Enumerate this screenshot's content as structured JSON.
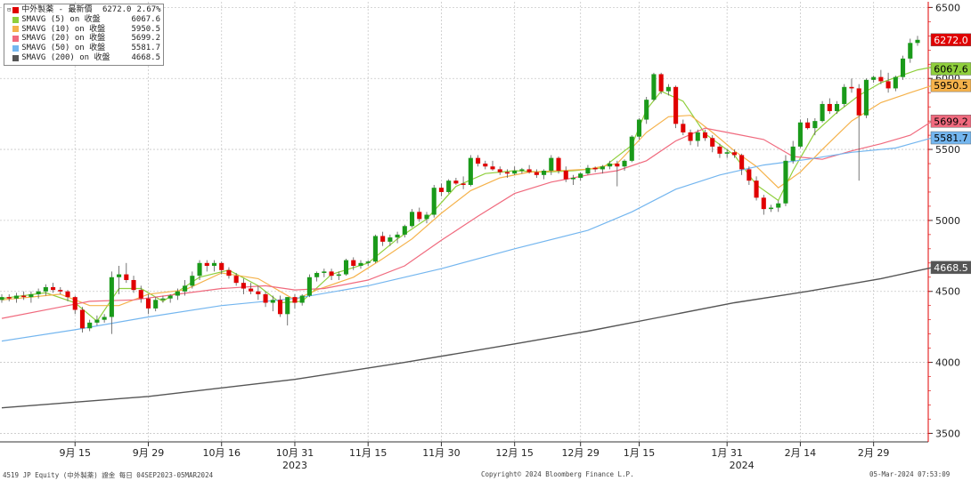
{
  "legend": {
    "items": [
      {
        "name": "中外製薬 - 最新價",
        "value": "6272.0",
        "pct": "2.67%",
        "color": "#e00000"
      },
      {
        "name": "SMAVG (5)  on 收盤",
        "value": "6067.6",
        "color": "#8fcf3c"
      },
      {
        "name": "SMAVG (10)  on 收盤",
        "value": "5950.5",
        "color": "#f5b24b"
      },
      {
        "name": "SMAVG (20)  on 收盤",
        "value": "5699.2",
        "color": "#f06a7e"
      },
      {
        "name": "SMAVG (50)  on 收盤",
        "value": "5581.7",
        "color": "#74b6ef"
      },
      {
        "name": "SMAVG (200)  on 收盤",
        "value": "4668.5",
        "color": "#555555"
      }
    ]
  },
  "footer": {
    "left": "4519 JP Equity (中外製薬) 證金  每日 04SEP2023-05MAR2024",
    "center": "Copyright© 2024 Bloomberg Finance L.P.",
    "right": "05-Mar-2024 07:53:09"
  },
  "chart_data": {
    "type": "candlestick",
    "title": "",
    "xlabel": "",
    "ylabel": "",
    "ylim": [
      3440,
      6540
    ],
    "y_ticks": [
      3500,
      4000,
      4500,
      5000,
      5500,
      6000,
      6500
    ],
    "x_tick_labels": [
      "9月 15",
      "9月 29",
      "10月 16",
      "10月 31",
      "11月 15",
      "11月 30",
      "12月 15",
      "12月 29",
      "1月 15",
      "1月 31",
      "2月 14",
      "2月 29"
    ],
    "x_tick_index": [
      10,
      20,
      30,
      40,
      50,
      60,
      70,
      79,
      87,
      99,
      109,
      119
    ],
    "year_labels": [
      {
        "label": "2023",
        "index": 40
      },
      {
        "label": "2024",
        "index": 101
      }
    ],
    "grid": true,
    "up_color": "#1a9a1a",
    "down_color": "#e00000",
    "candles": [
      [
        4440,
        4480,
        4420,
        4460
      ],
      [
        4460,
        4480,
        4430,
        4450
      ],
      [
        4450,
        4490,
        4420,
        4470
      ],
      [
        4470,
        4500,
        4440,
        4460
      ],
      [
        4460,
        4500,
        4420,
        4480
      ],
      [
        4480,
        4520,
        4450,
        4500
      ],
      [
        4500,
        4550,
        4470,
        4530
      ],
      [
        4530,
        4560,
        4490,
        4510
      ],
      [
        4510,
        4530,
        4480,
        4500
      ],
      [
        4500,
        4510,
        4430,
        4460
      ],
      [
        4460,
        4470,
        4340,
        4370
      ],
      [
        4370,
        4390,
        4210,
        4240
      ],
      [
        4240,
        4300,
        4220,
        4280
      ],
      [
        4280,
        4330,
        4260,
        4300
      ],
      [
        4300,
        4340,
        4280,
        4320
      ],
      [
        4320,
        4640,
        4200,
        4600
      ],
      [
        4600,
        4680,
        4480,
        4620
      ],
      [
        4620,
        4700,
        4560,
        4580
      ],
      [
        4580,
        4610,
        4490,
        4510
      ],
      [
        4510,
        4540,
        4420,
        4450
      ],
      [
        4450,
        4480,
        4340,
        4380
      ],
      [
        4380,
        4460,
        4360,
        4440
      ],
      [
        4440,
        4470,
        4420,
        4450
      ],
      [
        4450,
        4480,
        4420,
        4470
      ],
      [
        4470,
        4520,
        4440,
        4500
      ],
      [
        4500,
        4580,
        4470,
        4540
      ],
      [
        4540,
        4640,
        4520,
        4610
      ],
      [
        4610,
        4720,
        4580,
        4700
      ],
      [
        4700,
        4720,
        4640,
        4680
      ],
      [
        4680,
        4720,
        4640,
        4700
      ],
      [
        4700,
        4710,
        4620,
        4650
      ],
      [
        4650,
        4670,
        4590,
        4610
      ],
      [
        4610,
        4630,
        4540,
        4560
      ],
      [
        4560,
        4590,
        4480,
        4520
      ],
      [
        4520,
        4560,
        4480,
        4500
      ],
      [
        4500,
        4540,
        4440,
        4480
      ],
      [
        4480,
        4500,
        4390,
        4420
      ],
      [
        4420,
        4470,
        4360,
        4440
      ],
      [
        4440,
        4470,
        4320,
        4340
      ],
      [
        4340,
        4460,
        4260,
        4460
      ],
      [
        4460,
        4480,
        4380,
        4420
      ],
      [
        4420,
        4480,
        4400,
        4470
      ],
      [
        4470,
        4620,
        4460,
        4600
      ],
      [
        4600,
        4640,
        4570,
        4630
      ],
      [
        4630,
        4660,
        4600,
        4640
      ],
      [
        4640,
        4660,
        4580,
        4610
      ],
      [
        4610,
        4640,
        4580,
        4620
      ],
      [
        4620,
        4730,
        4610,
        4720
      ],
      [
        4720,
        4740,
        4650,
        4680
      ],
      [
        4680,
        4720,
        4660,
        4700
      ],
      [
        4700,
        4720,
        4680,
        4710
      ],
      [
        4710,
        4900,
        4700,
        4890
      ],
      [
        4890,
        4920,
        4820,
        4850
      ],
      [
        4850,
        4900,
        4820,
        4880
      ],
      [
        4880,
        4920,
        4840,
        4900
      ],
      [
        4900,
        4970,
        4880,
        4960
      ],
      [
        4960,
        5080,
        4950,
        5060
      ],
      [
        5060,
        5090,
        4990,
        5010
      ],
      [
        5010,
        5060,
        4980,
        5040
      ],
      [
        5040,
        5250,
        5020,
        5230
      ],
      [
        5230,
        5260,
        5170,
        5200
      ],
      [
        5200,
        5290,
        5190,
        5280
      ],
      [
        5280,
        5300,
        5250,
        5260
      ],
      [
        5260,
        5310,
        5220,
        5250
      ],
      [
        5250,
        5460,
        5240,
        5440
      ],
      [
        5440,
        5460,
        5380,
        5400
      ],
      [
        5400,
        5420,
        5360,
        5380
      ],
      [
        5380,
        5420,
        5350,
        5360
      ],
      [
        5360,
        5380,
        5320,
        5340
      ],
      [
        5340,
        5360,
        5300,
        5330
      ],
      [
        5330,
        5380,
        5320,
        5350
      ],
      [
        5350,
        5370,
        5330,
        5360
      ],
      [
        5360,
        5390,
        5330,
        5340
      ],
      [
        5340,
        5360,
        5300,
        5320
      ],
      [
        5320,
        5360,
        5290,
        5350
      ],
      [
        5350,
        5460,
        5320,
        5440
      ],
      [
        5440,
        5450,
        5330,
        5350
      ],
      [
        5350,
        5380,
        5270,
        5290
      ],
      [
        5290,
        5320,
        5250,
        5300
      ],
      [
        5300,
        5340,
        5280,
        5330
      ],
      [
        5330,
        5390,
        5320,
        5370
      ],
      [
        5370,
        5380,
        5340,
        5360
      ],
      [
        5360,
        5390,
        5330,
        5380
      ],
      [
        5380,
        5420,
        5360,
        5400
      ],
      [
        5400,
        5420,
        5240,
        5380
      ],
      [
        5380,
        5430,
        5350,
        5420
      ],
      [
        5420,
        5600,
        5410,
        5590
      ],
      [
        5590,
        5720,
        5570,
        5710
      ],
      [
        5710,
        5870,
        5680,
        5850
      ],
      [
        5850,
        6040,
        5840,
        6030
      ],
      [
        6030,
        6040,
        5890,
        5910
      ],
      [
        5910,
        5960,
        5880,
        5940
      ],
      [
        5940,
        5950,
        5650,
        5680
      ],
      [
        5680,
        5710,
        5600,
        5620
      ],
      [
        5620,
        5640,
        5530,
        5560
      ],
      [
        5560,
        5640,
        5520,
        5620
      ],
      [
        5620,
        5640,
        5560,
        5580
      ],
      [
        5580,
        5600,
        5480,
        5520
      ],
      [
        5520,
        5540,
        5440,
        5470
      ],
      [
        5470,
        5500,
        5440,
        5480
      ],
      [
        5480,
        5500,
        5440,
        5460
      ],
      [
        5460,
        5470,
        5320,
        5360
      ],
      [
        5360,
        5380,
        5250,
        5280
      ],
      [
        5280,
        5310,
        5140,
        5160
      ],
      [
        5160,
        5180,
        5040,
        5080
      ],
      [
        5080,
        5110,
        5060,
        5090
      ],
      [
        5090,
        5140,
        5060,
        5120
      ],
      [
        5120,
        5460,
        5100,
        5420
      ],
      [
        5420,
        5560,
        5400,
        5520
      ],
      [
        5520,
        5710,
        5510,
        5690
      ],
      [
        5690,
        5720,
        5640,
        5650
      ],
      [
        5650,
        5720,
        5600,
        5700
      ],
      [
        5700,
        5840,
        5690,
        5820
      ],
      [
        5820,
        5860,
        5750,
        5770
      ],
      [
        5770,
        5840,
        5750,
        5820
      ],
      [
        5820,
        5960,
        5800,
        5940
      ],
      [
        5940,
        6000,
        5900,
        5930
      ],
      [
        5930,
        5960,
        5280,
        5740
      ],
      [
        5740,
        6000,
        5720,
        5990
      ],
      [
        5990,
        6020,
        5970,
        6010
      ],
      [
        6010,
        6060,
        5960,
        5980
      ],
      [
        5980,
        6040,
        5900,
        5930
      ],
      [
        5930,
        6020,
        5910,
        6010
      ],
      [
        6010,
        6160,
        5990,
        6140
      ],
      [
        6140,
        6280,
        6110,
        6250
      ],
      [
        6250,
        6300,
        6230,
        6272
      ]
    ],
    "moving_averages": [
      {
        "name": "SMAVG (5)",
        "color": "#8fcf3c",
        "values": [
          [
            0,
            4450
          ],
          [
            6,
            4490
          ],
          [
            10,
            4420
          ],
          [
            13,
            4290
          ],
          [
            16,
            4520
          ],
          [
            19,
            4520
          ],
          [
            22,
            4430
          ],
          [
            27,
            4600
          ],
          [
            31,
            4650
          ],
          [
            35,
            4540
          ],
          [
            38,
            4420
          ],
          [
            41,
            4430
          ],
          [
            45,
            4620
          ],
          [
            50,
            4700
          ],
          [
            54,
            4870
          ],
          [
            58,
            5010
          ],
          [
            62,
            5240
          ],
          [
            66,
            5330
          ],
          [
            70,
            5350
          ],
          [
            74,
            5340
          ],
          [
            78,
            5350
          ],
          [
            82,
            5370
          ],
          [
            86,
            5530
          ],
          [
            88,
            5780
          ],
          [
            90,
            5910
          ],
          [
            93,
            5840
          ],
          [
            96,
            5610
          ],
          [
            100,
            5460
          ],
          [
            103,
            5250
          ],
          [
            106,
            5140
          ],
          [
            108,
            5350
          ],
          [
            111,
            5620
          ],
          [
            114,
            5760
          ],
          [
            117,
            5880
          ],
          [
            120,
            5970
          ],
          [
            125,
            6060
          ],
          [
            127,
            6080
          ]
        ]
      },
      {
        "name": "SMAVG (10)",
        "color": "#f5b24b",
        "values": [
          [
            0,
            4440
          ],
          [
            8,
            4480
          ],
          [
            12,
            4400
          ],
          [
            16,
            4400
          ],
          [
            20,
            4480
          ],
          [
            25,
            4510
          ],
          [
            30,
            4630
          ],
          [
            35,
            4590
          ],
          [
            40,
            4440
          ],
          [
            43,
            4510
          ],
          [
            48,
            4600
          ],
          [
            52,
            4730
          ],
          [
            56,
            4870
          ],
          [
            60,
            5050
          ],
          [
            64,
            5210
          ],
          [
            68,
            5300
          ],
          [
            72,
            5340
          ],
          [
            76,
            5350
          ],
          [
            80,
            5360
          ],
          [
            84,
            5400
          ],
          [
            88,
            5620
          ],
          [
            91,
            5730
          ],
          [
            94,
            5740
          ],
          [
            97,
            5620
          ],
          [
            100,
            5490
          ],
          [
            103,
            5380
          ],
          [
            106,
            5230
          ],
          [
            109,
            5340
          ],
          [
            112,
            5500
          ],
          [
            116,
            5700
          ],
          [
            120,
            5830
          ],
          [
            124,
            5900
          ],
          [
            127,
            5950
          ]
        ]
      },
      {
        "name": "SMAVG (20)",
        "color": "#f06a7e",
        "values": [
          [
            0,
            4310
          ],
          [
            8,
            4390
          ],
          [
            12,
            4430
          ],
          [
            18,
            4440
          ],
          [
            24,
            4480
          ],
          [
            30,
            4520
          ],
          [
            36,
            4540
          ],
          [
            40,
            4510
          ],
          [
            44,
            4520
          ],
          [
            50,
            4580
          ],
          [
            55,
            4680
          ],
          [
            60,
            4860
          ],
          [
            65,
            5030
          ],
          [
            70,
            5190
          ],
          [
            75,
            5270
          ],
          [
            80,
            5320
          ],
          [
            84,
            5350
          ],
          [
            88,
            5420
          ],
          [
            92,
            5560
          ],
          [
            96,
            5650
          ],
          [
            100,
            5610
          ],
          [
            104,
            5570
          ],
          [
            108,
            5450
          ],
          [
            112,
            5430
          ],
          [
            116,
            5490
          ],
          [
            120,
            5540
          ],
          [
            124,
            5600
          ],
          [
            127,
            5699
          ]
        ]
      },
      {
        "name": "SMAVG (50)",
        "color": "#74b6ef",
        "values": [
          [
            0,
            4150
          ],
          [
            10,
            4230
          ],
          [
            20,
            4320
          ],
          [
            30,
            4400
          ],
          [
            40,
            4450
          ],
          [
            50,
            4540
          ],
          [
            60,
            4660
          ],
          [
            70,
            4800
          ],
          [
            80,
            4930
          ],
          [
            86,
            5060
          ],
          [
            92,
            5220
          ],
          [
            98,
            5320
          ],
          [
            104,
            5390
          ],
          [
            110,
            5430
          ],
          [
            116,
            5480
          ],
          [
            122,
            5510
          ],
          [
            127,
            5581
          ]
        ]
      },
      {
        "name": "SMAVG (200)",
        "color": "#555555",
        "values": [
          [
            0,
            3680
          ],
          [
            20,
            3760
          ],
          [
            40,
            3880
          ],
          [
            55,
            4000
          ],
          [
            70,
            4130
          ],
          [
            80,
            4220
          ],
          [
            90,
            4320
          ],
          [
            100,
            4420
          ],
          [
            110,
            4500
          ],
          [
            120,
            4590
          ],
          [
            127,
            4668
          ]
        ]
      }
    ],
    "price_tags": [
      {
        "value": 6272.0,
        "label": "6272.0",
        "bg": "#e00000",
        "fg": "#ffffff"
      },
      {
        "value": 6067.6,
        "label": "6067.6",
        "bg": "#8fcf3c",
        "fg": "#000000"
      },
      {
        "value": 5950.5,
        "label": "5950.5",
        "bg": "#f5b24b",
        "fg": "#000000"
      },
      {
        "value": 5699.2,
        "label": "5699.2",
        "bg": "#f06a7e",
        "fg": "#000000"
      },
      {
        "value": 5581.7,
        "label": "5581.7",
        "bg": "#74b6ef",
        "fg": "#000000"
      },
      {
        "value": 4668.5,
        "label": "4668.5",
        "bg": "#555555",
        "fg": "#ffffff"
      }
    ]
  }
}
